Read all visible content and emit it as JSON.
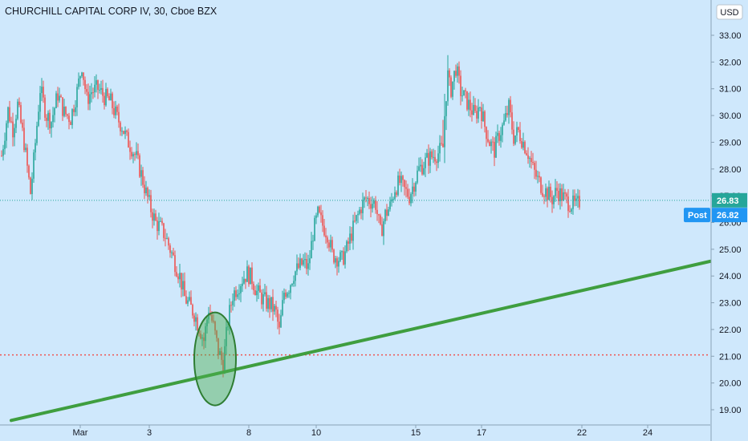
{
  "title": "CHURCHILL CAPITAL CORP IV, 30, Cboe BZX",
  "currency_label": "USD",
  "colors": {
    "background": "#cfe8fc",
    "up": "#26a69a",
    "down": "#ef5350",
    "trendline": "#3f9e3f",
    "support": "#ef5350",
    "last_price": "#26a69a",
    "post_badge": "#2196f3"
  },
  "last_price_label": "26.83",
  "post_label": "Post",
  "post_price_label": "26.82",
  "chart_data": {
    "type": "candlestick",
    "title": "CHURCHILL CAPITAL CORP IV, 30, Cboe BZX",
    "yrange": [
      18.6,
      33.6
    ],
    "y_ticks": [
      19,
      20,
      21,
      22,
      23,
      24,
      25,
      26,
      27,
      28,
      29,
      30,
      31,
      32,
      33
    ],
    "x_ticks": [
      {
        "label": "Mar",
        "x": 100
      },
      {
        "label": "3",
        "x": 186
      },
      {
        "label": "8",
        "x": 310
      },
      {
        "label": "10",
        "x": 394
      },
      {
        "label": "15",
        "x": 518
      },
      {
        "label": "17",
        "x": 600
      },
      {
        "label": "22",
        "x": 725
      },
      {
        "label": "24",
        "x": 807
      }
    ],
    "xrange": [
      0,
      885
    ],
    "price_path": [
      [
        2,
        28.5
      ],
      [
        10,
        30.2
      ],
      [
        16,
        29.5
      ],
      [
        22,
        30.4
      ],
      [
        30,
        29.0
      ],
      [
        38,
        27.1
      ],
      [
        42,
        28.3
      ],
      [
        50,
        31.0
      ],
      [
        58,
        30.0
      ],
      [
        64,
        29.8
      ],
      [
        72,
        30.8
      ],
      [
        80,
        30.1
      ],
      [
        88,
        29.9
      ],
      [
        96,
        30.9
      ],
      [
        102,
        31.9
      ],
      [
        108,
        30.6
      ],
      [
        114,
        30.9
      ],
      [
        122,
        31.0
      ],
      [
        130,
        30.7
      ],
      [
        138,
        30.5
      ],
      [
        146,
        29.9
      ],
      [
        152,
        29.6
      ],
      [
        158,
        29.1
      ],
      [
        164,
        28.8
      ],
      [
        170,
        28.4
      ],
      [
        176,
        27.8
      ],
      [
        182,
        27.1
      ],
      [
        188,
        26.5
      ],
      [
        194,
        26.0
      ],
      [
        200,
        25.8
      ],
      [
        206,
        25.5
      ],
      [
        212,
        25.0
      ],
      [
        218,
        24.5
      ],
      [
        224,
        24.0
      ],
      [
        230,
        23.2
      ],
      [
        236,
        22.9
      ],
      [
        242,
        22.6
      ],
      [
        248,
        22.1
      ],
      [
        254,
        21.6
      ],
      [
        260,
        22.8
      ],
      [
        266,
        22.1
      ],
      [
        272,
        21.2
      ],
      [
        278,
        20.7
      ],
      [
        284,
        22.3
      ],
      [
        290,
        23.3
      ],
      [
        296,
        23.6
      ],
      [
        302,
        23.9
      ],
      [
        308,
        24.1
      ],
      [
        314,
        23.9
      ],
      [
        320,
        23.4
      ],
      [
        326,
        23.2
      ],
      [
        332,
        23.0
      ],
      [
        338,
        22.9
      ],
      [
        344,
        22.6
      ],
      [
        348,
        21.9
      ],
      [
        354,
        23.4
      ],
      [
        360,
        23.6
      ],
      [
        366,
        24.1
      ],
      [
        372,
        24.3
      ],
      [
        378,
        24.5
      ],
      [
        384,
        24.3
      ],
      [
        390,
        25.6
      ],
      [
        396,
        26.3
      ],
      [
        402,
        25.9
      ],
      [
        408,
        25.6
      ],
      [
        414,
        24.8
      ],
      [
        420,
        24.7
      ],
      [
        426,
        24.6
      ],
      [
        432,
        25.0
      ],
      [
        438,
        25.6
      ],
      [
        444,
        26.1
      ],
      [
        450,
        26.6
      ],
      [
        456,
        26.9
      ],
      [
        462,
        26.8
      ],
      [
        468,
        26.7
      ],
      [
        474,
        25.6
      ],
      [
        480,
        26.3
      ],
      [
        486,
        26.6
      ],
      [
        492,
        27.3
      ],
      [
        498,
        27.5
      ],
      [
        504,
        27.2
      ],
      [
        510,
        27.0
      ],
      [
        516,
        27.5
      ],
      [
        522,
        28.0
      ],
      [
        528,
        28.2
      ],
      [
        534,
        28.4
      ],
      [
        540,
        28.5
      ],
      [
        546,
        28.6
      ],
      [
        552,
        28.8
      ],
      [
        556,
        31.3
      ],
      [
        562,
        31.0
      ],
      [
        568,
        31.8
      ],
      [
        574,
        30.9
      ],
      [
        580,
        30.6
      ],
      [
        586,
        30.3
      ],
      [
        592,
        30.0
      ],
      [
        598,
        30.4
      ],
      [
        604,
        29.6
      ],
      [
        610,
        29.0
      ],
      [
        616,
        28.7
      ],
      [
        622,
        29.3
      ],
      [
        628,
        29.7
      ],
      [
        634,
        30.3
      ],
      [
        640,
        29.2
      ],
      [
        646,
        29.4
      ],
      [
        652,
        29.0
      ],
      [
        658,
        28.6
      ],
      [
        664,
        28.0
      ],
      [
        670,
        27.6
      ],
      [
        676,
        27.3
      ],
      [
        682,
        27.1
      ],
      [
        688,
        26.9
      ],
      [
        694,
        27.2
      ],
      [
        700,
        27.0
      ],
      [
        706,
        26.8
      ],
      [
        712,
        26.7
      ],
      [
        718,
        26.6
      ],
      [
        723,
        26.83
      ]
    ],
    "support_level": 21.05,
    "trendline": [
      {
        "x": 14,
        "y": 18.6
      },
      {
        "x": 885,
        "y": 24.55
      }
    ],
    "highlight_ellipse": {
      "center": [
        268,
        20.9
      ],
      "rx": 26,
      "ry": 58
    },
    "last_price": 26.83,
    "post_price": 26.82
  }
}
